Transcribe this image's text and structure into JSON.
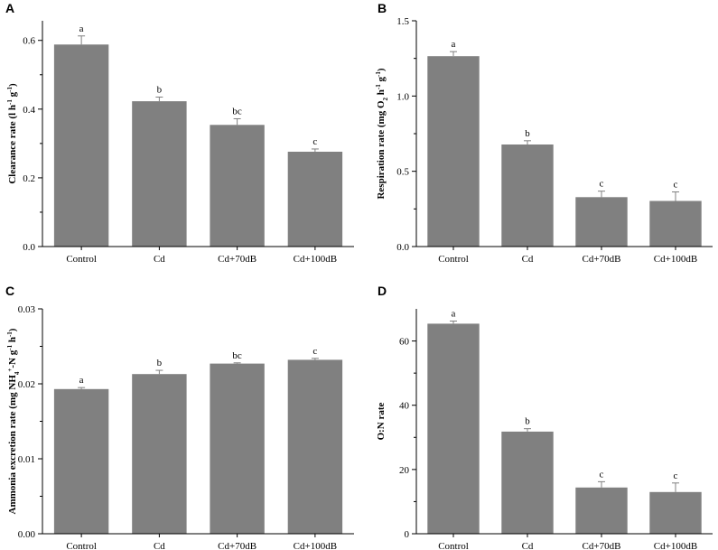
{
  "chart_data": [
    {
      "panel": "A",
      "type": "bar",
      "categories": [
        "Control",
        "Cd",
        "Cd+70dB",
        "Cd+100dB"
      ],
      "values": [
        0.588,
        0.423,
        0.354,
        0.276
      ],
      "errors": [
        0.025,
        0.012,
        0.018,
        0.008
      ],
      "significance": [
        "a",
        "b",
        "bc",
        "c"
      ],
      "ylabel": {
        "parts": [
          {
            "t": "Clearance rate (l h"
          },
          {
            "t": "-1",
            "sup": true
          },
          {
            "t": " g"
          },
          {
            "t": "-1",
            "sup": true
          },
          {
            "t": ")"
          }
        ]
      },
      "ylim": [
        0,
        0.6571
      ],
      "yticks": [
        0.0,
        0.2,
        0.4,
        0.6
      ],
      "ytick_labels": [
        "0.0",
        "0.2",
        "0.4",
        "0.6"
      ],
      "bar_color": "#808080"
    },
    {
      "panel": "B",
      "type": "bar",
      "categories": [
        "Control",
        "Cd",
        "Cd+70dB",
        "Cd+100dB"
      ],
      "values": [
        1.265,
        0.678,
        0.328,
        0.303
      ],
      "errors": [
        0.03,
        0.025,
        0.04,
        0.06
      ],
      "significance": [
        "a",
        "b",
        "c",
        "c"
      ],
      "ylabel": {
        "parts": [
          {
            "t": "Respiration rate (mg O"
          },
          {
            "t": "2",
            "sub": true
          },
          {
            "t": " h"
          },
          {
            "t": "-1",
            "sup": true
          },
          {
            "t": " g"
          },
          {
            "t": "-1",
            "sup": true
          },
          {
            "t": ")"
          }
        ]
      },
      "ylim": [
        0,
        1.5
      ],
      "yticks": [
        0.0,
        0.5,
        1.0,
        1.5
      ],
      "ytick_labels": [
        "0.0",
        "0.5",
        "1.0",
        "1.5"
      ],
      "bar_color": "#808080"
    },
    {
      "panel": "C",
      "type": "bar",
      "categories": [
        "Control",
        "Cd",
        "Cd+70dB",
        "Cd+100dB"
      ],
      "values": [
        0.0193,
        0.0213,
        0.0227,
        0.0232
      ],
      "errors": [
        0.0002,
        0.0005,
        0.0001,
        0.0002
      ],
      "significance": [
        "a",
        "b",
        "bc",
        "c"
      ],
      "ylabel": {
        "parts": [
          {
            "t": "Ammonia excretion rate (mg NH"
          },
          {
            "t": "4",
            "sub": true
          },
          {
            "t": "+",
            "sup": true
          },
          {
            "t": "-N g"
          },
          {
            "t": "-1",
            "sup": true
          },
          {
            "t": " h"
          },
          {
            "t": "-1",
            "sup": true
          },
          {
            "t": ")"
          }
        ]
      },
      "ylim": [
        0,
        0.03
      ],
      "yticks": [
        0.0,
        0.01,
        0.02,
        0.03
      ],
      "ytick_labels": [
        "0.00",
        "0.01",
        "0.02",
        "0.03"
      ],
      "bar_color": "#808080"
    },
    {
      "panel": "D",
      "type": "bar",
      "categories": [
        "Control",
        "Cd",
        "Cd+70dB",
        "Cd+100dB"
      ],
      "values": [
        65.4,
        31.8,
        14.4,
        13.0
      ],
      "errors": [
        0.8,
        0.9,
        1.8,
        2.8
      ],
      "significance": [
        "a",
        "b",
        "c",
        "c"
      ],
      "ylabel": {
        "parts": [
          {
            "t": "O:N rate"
          }
        ]
      },
      "ylim": [
        0,
        70
      ],
      "yticks": [
        0,
        20,
        40,
        60
      ],
      "ytick_labels": [
        "0",
        "20",
        "40",
        "60"
      ],
      "bar_color": "#808080"
    }
  ]
}
